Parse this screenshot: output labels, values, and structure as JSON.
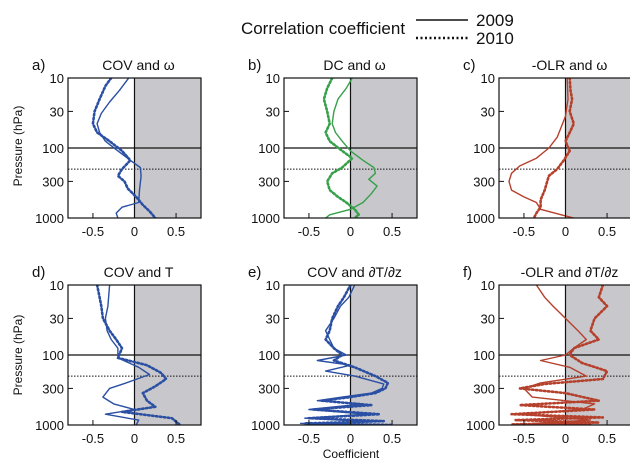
{
  "header": {
    "title": "Correlation coefficient",
    "legend": [
      {
        "label": "2009",
        "style": "solid"
      },
      {
        "label": "2010",
        "style": "dotted"
      }
    ]
  },
  "axes": {
    "ylabel": "Pressure (hPa)",
    "xlabel": "Coefficient",
    "yticks": [
      {
        "value": 10,
        "label": "10"
      },
      {
        "value": 30,
        "label": "30"
      },
      {
        "value": 100,
        "label": "100"
      },
      {
        "value": 300,
        "label": "300"
      },
      {
        "value": 1000,
        "label": "1000"
      }
    ],
    "xticks": [
      {
        "value": -0.5,
        "label": "-0.5"
      },
      {
        "value": 0,
        "label": "0"
      },
      {
        "value": 0.5,
        "label": "0.5"
      }
    ]
  },
  "colors": {
    "blue": "#2a4fa3",
    "green": "#36a04a",
    "red": "#b5402c",
    "shade": "#c8c8cc"
  },
  "chart_data": [
    {
      "type": "line",
      "panel": "a)",
      "title": "COV and ω",
      "color": "blue",
      "xlim": [
        -0.8,
        0.8
      ],
      "ylim": [
        10,
        1000
      ],
      "yscale": "log",
      "hlines": [
        {
          "p": 100,
          "style": "solid"
        },
        {
          "p": 200,
          "style": "dotted"
        }
      ],
      "series": [
        {
          "name": "2009",
          "style": "solid",
          "points": [
            [
              -0.07,
              10
            ],
            [
              -0.18,
              15
            ],
            [
              -0.3,
              22
            ],
            [
              -0.4,
              32
            ],
            [
              -0.45,
              45
            ],
            [
              -0.42,
              60
            ],
            [
              -0.35,
              80
            ],
            [
              -0.2,
              110
            ],
            [
              -0.05,
              150
            ],
            [
              0.07,
              190
            ],
            [
              0.08,
              250
            ],
            [
              0.06,
              400
            ],
            [
              0.05,
              600
            ],
            [
              -0.15,
              700
            ],
            [
              -0.22,
              850
            ],
            [
              -0.2,
              1000
            ]
          ]
        },
        {
          "name": "2010",
          "style": "dotted",
          "points": [
            [
              -0.28,
              10
            ],
            [
              -0.35,
              13
            ],
            [
              -0.42,
              20
            ],
            [
              -0.48,
              30
            ],
            [
              -0.5,
              45
            ],
            [
              -0.45,
              60
            ],
            [
              -0.3,
              80
            ],
            [
              -0.15,
              110
            ],
            [
              -0.05,
              150
            ],
            [
              -0.15,
              200
            ],
            [
              -0.2,
              250
            ],
            [
              -0.12,
              300
            ],
            [
              -0.08,
              380
            ],
            [
              0.02,
              500
            ],
            [
              0.1,
              650
            ],
            [
              0.18,
              800
            ],
            [
              0.25,
              1000
            ]
          ]
        }
      ]
    },
    {
      "type": "line",
      "panel": "b)",
      "title": "DC and ω",
      "color": "green",
      "xlim": [
        -0.8,
        0.8
      ],
      "ylim": [
        10,
        1000
      ],
      "yscale": "log",
      "hlines": [
        {
          "p": 100,
          "style": "solid"
        },
        {
          "p": 200,
          "style": "dotted"
        }
      ],
      "series": [
        {
          "name": "2009",
          "style": "solid",
          "points": [
            [
              0.02,
              10
            ],
            [
              -0.05,
              14
            ],
            [
              -0.15,
              20
            ],
            [
              -0.2,
              30
            ],
            [
              -0.22,
              45
            ],
            [
              -0.18,
              60
            ],
            [
              -0.1,
              80
            ],
            [
              0.0,
              110
            ],
            [
              0.15,
              150
            ],
            [
              0.28,
              190
            ],
            [
              0.3,
              230
            ],
            [
              0.22,
              280
            ],
            [
              0.32,
              350
            ],
            [
              0.25,
              450
            ],
            [
              0.15,
              600
            ],
            [
              0.0,
              750
            ],
            [
              -0.25,
              900
            ],
            [
              -0.3,
              1000
            ]
          ]
        },
        {
          "name": "2010",
          "style": "dotted",
          "points": [
            [
              -0.22,
              10
            ],
            [
              -0.28,
              14
            ],
            [
              -0.32,
              20
            ],
            [
              -0.28,
              30
            ],
            [
              -0.25,
              45
            ],
            [
              -0.3,
              60
            ],
            [
              -0.25,
              80
            ],
            [
              -0.1,
              110
            ],
            [
              0.02,
              140
            ],
            [
              -0.1,
              190
            ],
            [
              -0.22,
              230
            ],
            [
              -0.28,
              300
            ],
            [
              -0.25,
              400
            ],
            [
              -0.15,
              500
            ],
            [
              -0.05,
              600
            ],
            [
              0.05,
              750
            ],
            [
              0.1,
              900
            ],
            [
              0.05,
              1000
            ]
          ]
        }
      ]
    },
    {
      "type": "line",
      "panel": "c)",
      "title": "-OLR and ω",
      "color": "red",
      "xlim": [
        -0.8,
        0.8
      ],
      "ylim": [
        10,
        1000
      ],
      "yscale": "log",
      "hlines": [
        {
          "p": 100,
          "style": "solid"
        },
        {
          "p": 200,
          "style": "dotted"
        }
      ],
      "series": [
        {
          "name": "2009",
          "style": "solid",
          "points": [
            [
              0.02,
              10
            ],
            [
              0.03,
              20
            ],
            [
              0.0,
              35
            ],
            [
              -0.05,
              50
            ],
            [
              -0.1,
              70
            ],
            [
              -0.2,
              100
            ],
            [
              -0.35,
              140
            ],
            [
              -0.55,
              180
            ],
            [
              -0.65,
              230
            ],
            [
              -0.68,
              300
            ],
            [
              -0.65,
              400
            ],
            [
              -0.5,
              500
            ],
            [
              -0.35,
              600
            ],
            [
              -0.3,
              750
            ],
            [
              -0.05,
              900
            ],
            [
              0.1,
              1000
            ]
          ]
        },
        {
          "name": "2010",
          "style": "dotted",
          "points": [
            [
              0.05,
              10
            ],
            [
              0.06,
              15
            ],
            [
              0.08,
              20
            ],
            [
              0.05,
              30
            ],
            [
              0.1,
              45
            ],
            [
              0.05,
              60
            ],
            [
              0.0,
              80
            ],
            [
              0.05,
              110
            ],
            [
              -0.02,
              150
            ],
            [
              -0.1,
              200
            ],
            [
              -0.2,
              250
            ],
            [
              -0.22,
              300
            ],
            [
              -0.25,
              400
            ],
            [
              -0.3,
              550
            ],
            [
              -0.3,
              700
            ],
            [
              -0.35,
              850
            ],
            [
              -0.38,
              1000
            ]
          ]
        }
      ]
    },
    {
      "type": "line",
      "panel": "d)",
      "title": "COV and T",
      "color": "blue",
      "xlim": [
        -0.8,
        0.8
      ],
      "ylim": [
        10,
        1000
      ],
      "yscale": "log",
      "hlines": [
        {
          "p": 100,
          "style": "solid"
        },
        {
          "p": 200,
          "style": "dotted"
        }
      ],
      "series": [
        {
          "name": "2009",
          "style": "solid",
          "points": [
            [
              -0.3,
              10
            ],
            [
              -0.32,
              20
            ],
            [
              -0.35,
              30
            ],
            [
              -0.33,
              45
            ],
            [
              -0.28,
              60
            ],
            [
              -0.2,
              80
            ],
            [
              -0.2,
              110
            ],
            [
              0.05,
              150
            ],
            [
              0.18,
              190
            ],
            [
              -0.1,
              250
            ],
            [
              -0.3,
              300
            ],
            [
              -0.38,
              400
            ],
            [
              -0.25,
              500
            ],
            [
              0.0,
              600
            ],
            [
              -0.35,
              700
            ],
            [
              0.05,
              850
            ],
            [
              0.02,
              1000
            ]
          ]
        },
        {
          "name": "2010",
          "style": "dotted",
          "points": [
            [
              -0.45,
              10
            ],
            [
              -0.42,
              15
            ],
            [
              -0.4,
              20
            ],
            [
              -0.38,
              30
            ],
            [
              -0.3,
              45
            ],
            [
              -0.22,
              60
            ],
            [
              -0.15,
              80
            ],
            [
              -0.2,
              110
            ],
            [
              0.15,
              140
            ],
            [
              0.32,
              180
            ],
            [
              0.38,
              220
            ],
            [
              0.25,
              280
            ],
            [
              0.1,
              350
            ],
            [
              0.15,
              450
            ],
            [
              0.25,
              550
            ],
            [
              -0.15,
              650
            ],
            [
              0.45,
              800
            ],
            [
              0.55,
              1000
            ]
          ]
        }
      ]
    },
    {
      "type": "line",
      "panel": "e)",
      "title": "COV and ∂T/∂z",
      "color": "blue",
      "xlim": [
        -0.8,
        0.8
      ],
      "ylim": [
        10,
        1000
      ],
      "yscale": "log",
      "hlines": [
        {
          "p": 100,
          "style": "solid"
        },
        {
          "p": 200,
          "style": "dotted"
        }
      ],
      "series": [
        {
          "name": "2009",
          "style": "solid",
          "points": [
            [
              0.05,
              10
            ],
            [
              -0.02,
              15
            ],
            [
              -0.12,
              20
            ],
            [
              -0.2,
              30
            ],
            [
              -0.3,
              45
            ],
            [
              -0.25,
              60
            ],
            [
              -0.2,
              80
            ],
            [
              -0.05,
              100
            ],
            [
              -0.4,
              120
            ],
            [
              0.0,
              140
            ],
            [
              -0.3,
              170
            ],
            [
              0.05,
              200
            ],
            [
              0.4,
              260
            ],
            [
              0.38,
              300
            ],
            [
              0.25,
              350
            ],
            [
              -0.1,
              400
            ],
            [
              -0.4,
              450
            ],
            [
              0.15,
              500
            ],
            [
              -0.5,
              600
            ],
            [
              0.2,
              700
            ],
            [
              -0.55,
              800
            ],
            [
              0.25,
              900
            ],
            [
              -0.6,
              950
            ],
            [
              0.45,
              1000
            ]
          ]
        },
        {
          "name": "2010",
          "style": "dotted",
          "points": [
            [
              0.0,
              10
            ],
            [
              -0.08,
              15
            ],
            [
              -0.15,
              20
            ],
            [
              -0.22,
              30
            ],
            [
              -0.25,
              45
            ],
            [
              -0.3,
              60
            ],
            [
              -0.2,
              80
            ],
            [
              -0.1,
              100
            ],
            [
              -0.2,
              120
            ],
            [
              0.05,
              150
            ],
            [
              0.3,
              200
            ],
            [
              0.45,
              250
            ],
            [
              0.42,
              300
            ],
            [
              0.3,
              350
            ],
            [
              0.0,
              400
            ],
            [
              -0.35,
              450
            ],
            [
              0.25,
              520
            ],
            [
              -0.45,
              600
            ],
            [
              0.35,
              700
            ],
            [
              -0.5,
              800
            ],
            [
              0.4,
              880
            ],
            [
              -0.55,
              950
            ],
            [
              0.5,
              1000
            ]
          ]
        }
      ]
    },
    {
      "type": "line",
      "panel": "f)",
      "title": "-OLR and ∂T/∂z",
      "color": "red",
      "xlim": [
        -0.8,
        0.8
      ],
      "ylim": [
        10,
        1000
      ],
      "yscale": "log",
      "hlines": [
        {
          "p": 100,
          "style": "solid"
        },
        {
          "p": 200,
          "style": "dotted"
        }
      ],
      "series": [
        {
          "name": "2009",
          "style": "solid",
          "points": [
            [
              -0.35,
              10
            ],
            [
              -0.25,
              15
            ],
            [
              -0.15,
              20
            ],
            [
              0.0,
              30
            ],
            [
              0.15,
              45
            ],
            [
              0.25,
              60
            ],
            [
              0.1,
              80
            ],
            [
              0.0,
              100
            ],
            [
              -0.3,
              120
            ],
            [
              0.05,
              150
            ],
            [
              0.25,
              200
            ],
            [
              -0.3,
              250
            ],
            [
              -0.5,
              300
            ],
            [
              -0.4,
              400
            ],
            [
              0.35,
              500
            ],
            [
              0.2,
              600
            ],
            [
              -0.55,
              700
            ],
            [
              0.3,
              850
            ],
            [
              -0.4,
              950
            ],
            [
              0.25,
              1000
            ]
          ]
        },
        {
          "name": "2010",
          "style": "dotted",
          "points": [
            [
              0.45,
              10
            ],
            [
              0.4,
              15
            ],
            [
              0.5,
              20
            ],
            [
              0.35,
              30
            ],
            [
              0.3,
              45
            ],
            [
              0.4,
              60
            ],
            [
              0.1,
              80
            ],
            [
              0.05,
              100
            ],
            [
              0.2,
              130
            ],
            [
              0.5,
              170
            ],
            [
              0.45,
              220
            ],
            [
              -0.25,
              260
            ],
            [
              -0.55,
              300
            ],
            [
              0.0,
              350
            ],
            [
              0.4,
              450
            ],
            [
              -0.55,
              520
            ],
            [
              0.35,
              600
            ],
            [
              -0.65,
              700
            ],
            [
              0.45,
              780
            ],
            [
              -0.6,
              850
            ],
            [
              0.4,
              920
            ],
            [
              -0.65,
              980
            ],
            [
              0.3,
              1000
            ]
          ]
        }
      ]
    }
  ]
}
